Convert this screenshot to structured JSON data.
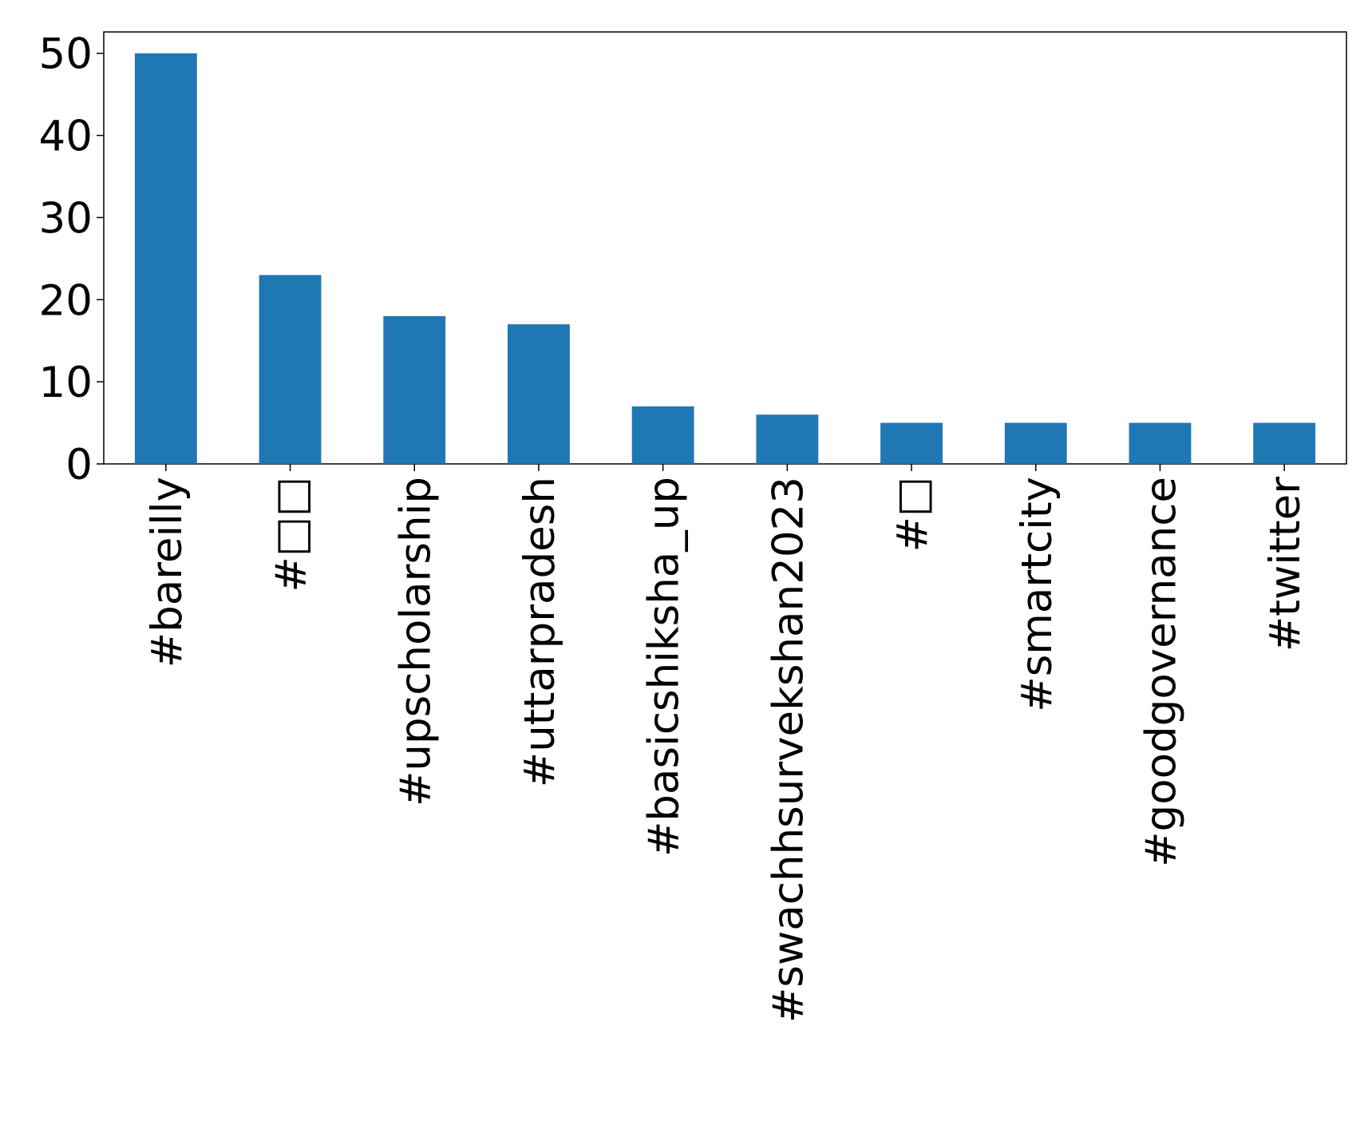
{
  "chart_data": {
    "type": "bar",
    "categories": [
      "#bareilly",
      "#□□",
      "#upscholarship",
      "#uttarpradesh",
      "#basicshiksha_up",
      "#swachhsurvekshan2023",
      "#□",
      "#smartcity",
      "#goodgovernance",
      "#twitter"
    ],
    "values": [
      50,
      23,
      18,
      17,
      7,
      6,
      5,
      5,
      5,
      5
    ],
    "color": "#1f77b4",
    "ylim": [
      0,
      52.6
    ],
    "yticks": [
      0,
      10,
      20,
      30,
      40,
      50
    ],
    "grid": false
  }
}
